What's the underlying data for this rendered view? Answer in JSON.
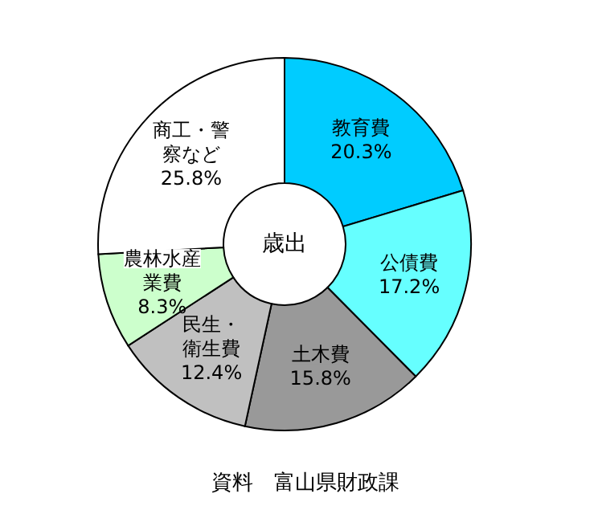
{
  "chart_data": {
    "type": "donut",
    "categories": [
      "教育費",
      "公債費",
      "土木費",
      "民生・衛生費",
      "農林水産業費",
      "商工・警察など"
    ],
    "values": [
      20.3,
      17.2,
      15.8,
      12.4,
      8.3,
      25.8
    ],
    "value_labels": [
      "20.3%",
      "17.2%",
      "15.8%",
      "12.4%",
      "8.3%",
      "25.8%"
    ],
    "colors": [
      "#00ccff",
      "#66ffff",
      "#999999",
      "#c0c0c0",
      "#ccffcc",
      "#ffffff"
    ],
    "annotations": [
      "歳出",
      "資料　富山県財政課"
    ]
  }
}
